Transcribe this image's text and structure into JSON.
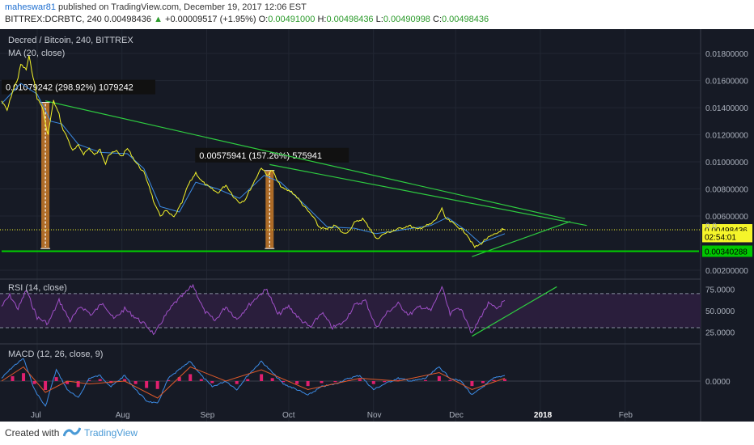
{
  "header": {
    "user": "maheswar81",
    "published": " published on TradingView.com, December 19, 2017 12:06 EST"
  },
  "quote": {
    "symbol": "BITTREX:DCRBTC, 240",
    "last": "0.00498436",
    "change": "+0.00009517 (+1.95%)",
    "o_label": "O:",
    "o": "0.00491000",
    "h_label": "H:",
    "h": "0.00498436",
    "l_label": "L:",
    "l": "0.00490998",
    "c_label": "C:",
    "c": "0.00498436"
  },
  "chart_data": [
    {
      "type": "line",
      "title": "Decred / Bitcoin, 240, BITTREX",
      "series": [
        {
          "name": "MA (20, close)"
        }
      ],
      "x_ticks": [
        "Jul",
        "Aug",
        "Sep",
        "Oct",
        "Nov",
        "Dec",
        "2018",
        "Feb"
      ],
      "y_ticks": [
        "0.01800000",
        "0.01600000",
        "0.01400000",
        "0.01200000",
        "0.01000000",
        "0.00800000",
        "0.00600000",
        "0.00200000"
      ],
      "ylim": [
        0.0014,
        0.0198
      ],
      "price_path": [
        [
          "2017-06-18",
          0.0145
        ],
        [
          "2017-06-20",
          0.0138
        ],
        [
          "2017-06-22",
          0.0152
        ],
        [
          "2017-06-24",
          0.0162
        ],
        [
          "2017-06-25",
          0.0172
        ],
        [
          "2017-06-27",
          0.0168
        ],
        [
          "2017-06-28",
          0.0178
        ],
        [
          "2017-06-30",
          0.0158
        ],
        [
          "2017-07-01",
          0.0147
        ],
        [
          "2017-07-03",
          0.014
        ],
        [
          "2017-07-04",
          0.0128
        ],
        [
          "2017-07-05",
          0.012
        ],
        [
          "2017-07-06",
          0.0133
        ],
        [
          "2017-07-07",
          0.0145
        ],
        [
          "2017-07-09",
          0.0135
        ],
        [
          "2017-07-10",
          0.0126
        ],
        [
          "2017-07-12",
          0.0118
        ],
        [
          "2017-07-14",
          0.0108
        ],
        [
          "2017-07-16",
          0.0112
        ],
        [
          "2017-07-18",
          0.0106
        ],
        [
          "2017-07-20",
          0.011
        ],
        [
          "2017-07-22",
          0.0105
        ],
        [
          "2017-07-24",
          0.0109
        ],
        [
          "2017-07-26",
          0.0099
        ],
        [
          "2017-07-27",
          0.0105
        ],
        [
          "2017-07-30",
          0.0108
        ],
        [
          "2017-08-01",
          0.0104
        ],
        [
          "2017-08-03",
          0.011
        ],
        [
          "2017-08-06",
          0.01
        ],
        [
          "2017-08-09",
          0.0092
        ],
        [
          "2017-08-11",
          0.0082
        ],
        [
          "2017-08-13",
          0.0068
        ],
        [
          "2017-08-15",
          0.006
        ],
        [
          "2017-08-17",
          0.0064
        ],
        [
          "2017-08-20",
          0.0059
        ],
        [
          "2017-08-23",
          0.007
        ],
        [
          "2017-08-25",
          0.0082
        ],
        [
          "2017-08-28",
          0.0092
        ],
        [
          "2017-08-30",
          0.0086
        ],
        [
          "2017-09-02",
          0.0081
        ],
        [
          "2017-09-05",
          0.0077
        ],
        [
          "2017-09-08",
          0.0083
        ],
        [
          "2017-09-11",
          0.0074
        ],
        [
          "2017-09-13",
          0.007
        ],
        [
          "2017-09-15",
          0.0072
        ],
        [
          "2017-09-18",
          0.0084
        ],
        [
          "2017-09-21",
          0.0096
        ],
        [
          "2017-09-23",
          0.009
        ],
        [
          "2017-09-25",
          0.0094
        ],
        [
          "2017-09-27",
          0.0085
        ],
        [
          "2017-09-29",
          0.008
        ],
        [
          "2017-10-02",
          0.0078
        ],
        [
          "2017-10-04",
          0.0074
        ],
        [
          "2017-10-07",
          0.0066
        ],
        [
          "2017-10-10",
          0.0059
        ],
        [
          "2017-10-12",
          0.0052
        ],
        [
          "2017-10-15",
          0.005
        ],
        [
          "2017-10-18",
          0.0053
        ],
        [
          "2017-10-21",
          0.0047
        ],
        [
          "2017-10-23",
          0.0049
        ],
        [
          "2017-10-25",
          0.0055
        ],
        [
          "2017-10-28",
          0.0058
        ],
        [
          "2017-10-31",
          0.005
        ],
        [
          "2017-11-02",
          0.0043
        ],
        [
          "2017-11-05",
          0.0047
        ],
        [
          "2017-11-08",
          0.0049
        ],
        [
          "2017-11-11",
          0.0051
        ],
        [
          "2017-11-14",
          0.0053
        ],
        [
          "2017-11-17",
          0.005
        ],
        [
          "2017-11-19",
          0.0052
        ],
        [
          "2017-11-22",
          0.0054
        ],
        [
          "2017-11-24",
          0.0058
        ],
        [
          "2017-11-26",
          0.0066
        ],
        [
          "2017-11-27",
          0.0059
        ],
        [
          "2017-11-29",
          0.0056
        ],
        [
          "2017-12-02",
          0.0052
        ],
        [
          "2017-12-05",
          0.0047
        ],
        [
          "2017-12-07",
          0.004
        ],
        [
          "2017-12-08",
          0.0037
        ],
        [
          "2017-12-10",
          0.0039
        ],
        [
          "2017-12-12",
          0.0043
        ],
        [
          "2017-12-14",
          0.0045
        ],
        [
          "2017-12-16",
          0.0047
        ],
        [
          "2017-12-18",
          0.005
        ],
        [
          "2017-12-19",
          0.00498436
        ]
      ],
      "ma_path": [
        [
          "2017-06-18",
          0.0143
        ],
        [
          "2017-06-25",
          0.0158
        ],
        [
          "2017-07-01",
          0.015
        ],
        [
          "2017-07-06",
          0.013
        ],
        [
          "2017-07-10",
          0.0128
        ],
        [
          "2017-07-16",
          0.0113
        ],
        [
          "2017-07-24",
          0.0107
        ],
        [
          "2017-08-03",
          0.0106
        ],
        [
          "2017-08-09",
          0.0095
        ],
        [
          "2017-08-15",
          0.0067
        ],
        [
          "2017-08-22",
          0.0063
        ],
        [
          "2017-08-28",
          0.0085
        ],
        [
          "2017-09-05",
          0.008
        ],
        [
          "2017-09-13",
          0.0073
        ],
        [
          "2017-09-22",
          0.009
        ],
        [
          "2017-09-28",
          0.0085
        ],
        [
          "2017-10-07",
          0.0068
        ],
        [
          "2017-10-15",
          0.0052
        ],
        [
          "2017-10-25",
          0.0051
        ],
        [
          "2017-11-02",
          0.0047
        ],
        [
          "2017-11-12",
          0.005
        ],
        [
          "2017-11-22",
          0.0053
        ],
        [
          "2017-11-28",
          0.0059
        ],
        [
          "2017-12-05",
          0.0049
        ],
        [
          "2017-12-10",
          0.004
        ],
        [
          "2017-12-19",
          0.0047
        ]
      ],
      "price_labels": [
        {
          "text": "0.00498436",
          "value": 0.00498436
        },
        {
          "text": "02:54:01",
          "value": 0.00448
        },
        {
          "text": "0.00340288",
          "value": 0.00340288
        },
        {
          "text": "0.0",
          "value": 0.00448
        }
      ],
      "annotations": [
        {
          "text": "0.01079242 (298.92%) 1079242",
          "from_date": "2017-07-04",
          "from_value": 0.0036,
          "to_value": 0.01439
        },
        {
          "text": "0.00575941 (157.26%) 575941",
          "from_date": "2017-09-24",
          "from_value": 0.0036,
          "to_value": 0.00936
        }
      ],
      "trendlines": [
        {
          "color": "#2ecc40",
          "points": [
            [
              "2017-07-04",
              0.0145
            ],
            [
              "2018-01-10",
              0.0058
            ]
          ]
        },
        {
          "color": "#2ecc40",
          "points": [
            [
              "2017-09-24",
              0.0098
            ],
            [
              "2018-01-18",
              0.0053
            ]
          ]
        },
        {
          "color": "#2ecc40",
          "points": [
            [
              "2017-12-07",
              0.003
            ],
            [
              "2018-01-12",
              0.0056
            ]
          ]
        },
        {
          "color": "#00d000",
          "points": [
            [
              "2017-06-18",
              0.00340288
            ],
            [
              "2018-02-28",
              0.00340288
            ]
          ]
        }
      ]
    },
    {
      "type": "line",
      "title": "RSI (14, close)",
      "y_ticks": [
        "75.0000",
        "50.0000",
        "25.0000"
      ],
      "ylim": [
        12,
        86
      ],
      "bands": [
        30,
        70
      ],
      "rsi_path": [
        [
          "2017-06-18",
          55
        ],
        [
          "2017-06-21",
          68
        ],
        [
          "2017-06-24",
          52
        ],
        [
          "2017-06-27",
          74
        ],
        [
          "2017-07-01",
          42
        ],
        [
          "2017-07-05",
          35
        ],
        [
          "2017-07-09",
          62
        ],
        [
          "2017-07-13",
          38
        ],
        [
          "2017-07-17",
          55
        ],
        [
          "2017-07-21",
          45
        ],
        [
          "2017-07-25",
          60
        ],
        [
          "2017-07-29",
          40
        ],
        [
          "2017-08-02",
          52
        ],
        [
          "2017-08-06",
          42
        ],
        [
          "2017-08-10",
          32
        ],
        [
          "2017-08-13",
          22
        ],
        [
          "2017-08-16",
          40
        ],
        [
          "2017-08-20",
          58
        ],
        [
          "2017-08-24",
          70
        ],
        [
          "2017-08-27",
          80
        ],
        [
          "2017-08-31",
          50
        ],
        [
          "2017-09-04",
          38
        ],
        [
          "2017-09-08",
          55
        ],
        [
          "2017-09-12",
          40
        ],
        [
          "2017-09-16",
          55
        ],
        [
          "2017-09-20",
          68
        ],
        [
          "2017-09-23",
          75
        ],
        [
          "2017-09-27",
          45
        ],
        [
          "2017-10-01",
          55
        ],
        [
          "2017-10-05",
          40
        ],
        [
          "2017-10-09",
          30
        ],
        [
          "2017-10-13",
          48
        ],
        [
          "2017-10-17",
          30
        ],
        [
          "2017-10-21",
          36
        ],
        [
          "2017-10-25",
          56
        ],
        [
          "2017-10-29",
          62
        ],
        [
          "2017-11-02",
          30
        ],
        [
          "2017-11-06",
          48
        ],
        [
          "2017-11-10",
          58
        ],
        [
          "2017-11-14",
          45
        ],
        [
          "2017-11-18",
          55
        ],
        [
          "2017-11-22",
          50
        ],
        [
          "2017-11-26",
          78
        ],
        [
          "2017-11-29",
          45
        ],
        [
          "2017-12-02",
          55
        ],
        [
          "2017-12-05",
          40
        ],
        [
          "2017-12-07",
          22
        ],
        [
          "2017-12-10",
          42
        ],
        [
          "2017-12-13",
          58
        ],
        [
          "2017-12-16",
          52
        ],
        [
          "2017-12-19",
          62
        ]
      ],
      "trendline": [
        [
          "2017-12-07",
          20
        ],
        [
          "2018-01-07",
          78
        ]
      ]
    },
    {
      "type": "line",
      "title": "MACD (12, 26, close, 9)",
      "y_ticks": [
        "0.0000"
      ],
      "ylim": [
        -1,
        1
      ],
      "macd_path": [
        [
          "2017-06-18",
          0.1
        ],
        [
          "2017-06-22",
          0.5
        ],
        [
          "2017-06-26",
          0.8
        ],
        [
          "2017-06-30",
          -0.3
        ],
        [
          "2017-07-04",
          -0.9
        ],
        [
          "2017-07-08",
          0.4
        ],
        [
          "2017-07-12",
          -0.3
        ],
        [
          "2017-07-16",
          -0.6
        ],
        [
          "2017-07-20",
          0.1
        ],
        [
          "2017-07-24",
          0.2
        ],
        [
          "2017-07-28",
          -0.2
        ],
        [
          "2017-08-02",
          0.2
        ],
        [
          "2017-08-06",
          -0.3
        ],
        [
          "2017-08-10",
          -0.7
        ],
        [
          "2017-08-14",
          -0.8
        ],
        [
          "2017-08-18",
          0.1
        ],
        [
          "2017-08-22",
          0.4
        ],
        [
          "2017-08-26",
          0.7
        ],
        [
          "2017-08-30",
          0.2
        ],
        [
          "2017-09-03",
          -0.2
        ],
        [
          "2017-09-08",
          0.0
        ],
        [
          "2017-09-12",
          -0.3
        ],
        [
          "2017-09-16",
          0.2
        ],
        [
          "2017-09-21",
          0.7
        ],
        [
          "2017-09-25",
          0.3
        ],
        [
          "2017-09-29",
          -0.1
        ],
        [
          "2017-10-04",
          -0.3
        ],
        [
          "2017-10-08",
          -0.5
        ],
        [
          "2017-10-13",
          -0.2
        ],
        [
          "2017-10-18",
          -0.1
        ],
        [
          "2017-10-23",
          0.1
        ],
        [
          "2017-10-27",
          0.2
        ],
        [
          "2017-11-01",
          -0.3
        ],
        [
          "2017-11-05",
          -0.1
        ],
        [
          "2017-11-10",
          0.1
        ],
        [
          "2017-11-15",
          0.0
        ],
        [
          "2017-11-20",
          0.1
        ],
        [
          "2017-11-25",
          0.5
        ],
        [
          "2017-11-29",
          0.1
        ],
        [
          "2017-12-03",
          0.0
        ],
        [
          "2017-12-07",
          -0.5
        ],
        [
          "2017-12-11",
          -0.2
        ],
        [
          "2017-12-15",
          0.1
        ],
        [
          "2017-12-19",
          0.2
        ]
      ],
      "signal_path": [
        [
          "2017-06-18",
          0.0
        ],
        [
          "2017-06-26",
          0.5
        ],
        [
          "2017-07-04",
          -0.4
        ],
        [
          "2017-07-12",
          0.0
        ],
        [
          "2017-07-20",
          -0.1
        ],
        [
          "2017-08-02",
          0.0
        ],
        [
          "2017-08-14",
          -0.6
        ],
        [
          "2017-08-26",
          0.5
        ],
        [
          "2017-09-08",
          0.0
        ],
        [
          "2017-09-21",
          0.4
        ],
        [
          "2017-10-08",
          -0.3
        ],
        [
          "2017-10-27",
          0.1
        ],
        [
          "2017-11-10",
          0.0
        ],
        [
          "2017-11-25",
          0.3
        ],
        [
          "2017-12-07",
          -0.3
        ],
        [
          "2017-12-19",
          0.1
        ]
      ]
    }
  ],
  "footer": {
    "created": "Created with",
    "brand": "TradingView"
  },
  "colors": {
    "background": "#161a25",
    "price": "#f5f52a",
    "ma": "#3c8ce6",
    "trend": "#2ecc40",
    "rsi": "#a050c8",
    "macd": "#3c8ce6",
    "signal": "#e05a2a",
    "hist": "#e0206e",
    "measure": "#c87a28"
  }
}
